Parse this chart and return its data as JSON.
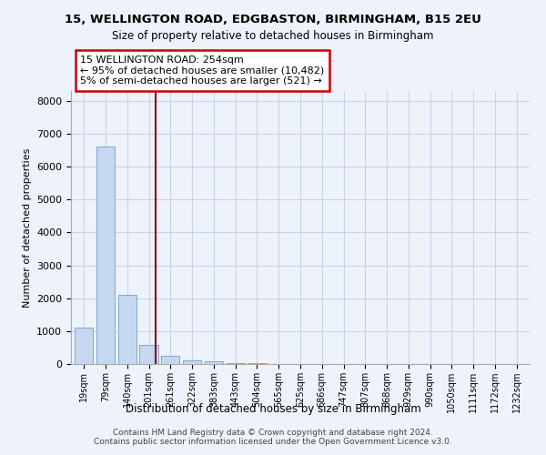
{
  "title1": "15, WELLINGTON ROAD, EDGBASTON, BIRMINGHAM, B15 2EU",
  "title2": "Size of property relative to detached houses in Birmingham",
  "xlabel": "Distribution of detached houses by size in Birmingham",
  "ylabel": "Number of detached properties",
  "categories": [
    "19sqm",
    "79sqm",
    "140sqm",
    "201sqm",
    "261sqm",
    "322sqm",
    "383sqm",
    "443sqm",
    "504sqm",
    "565sqm",
    "625sqm",
    "686sqm",
    "747sqm",
    "807sqm",
    "868sqm",
    "929sqm",
    "990sqm",
    "1050sqm",
    "1111sqm",
    "1172sqm",
    "1232sqm"
  ],
  "values": [
    1100,
    6600,
    2100,
    590,
    260,
    120,
    75,
    35,
    18,
    8,
    5,
    3,
    2,
    2,
    1,
    1,
    1,
    1,
    1,
    1,
    1
  ],
  "bar_color": "#c5d8f0",
  "bar_edge_color": "#7aaad4",
  "grid_color": "#c8d4e8",
  "vline_color": "#8b0000",
  "vline_x": 3.32,
  "annotation_text": "15 WELLINGTON ROAD: 254sqm\n← 95% of detached houses are smaller (10,482)\n5% of semi-detached houses are larger (521) →",
  "annotation_box_color": "#ffffff",
  "annotation_box_edge": "#cc0000",
  "footer": "Contains HM Land Registry data © Crown copyright and database right 2024.\nContains public sector information licensed under the Open Government Licence v3.0.",
  "ylim": [
    0,
    8300
  ],
  "bg_color": "#eef2fa"
}
